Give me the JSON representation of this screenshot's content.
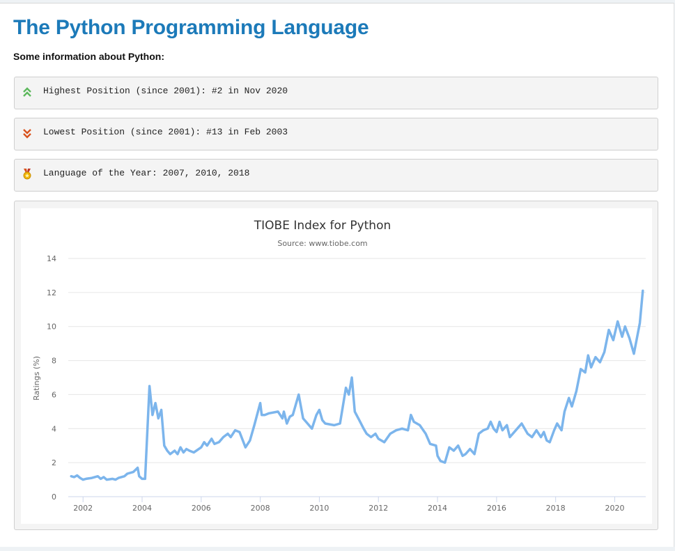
{
  "page": {
    "title": "The Python Programming Language",
    "subtitle": "Some information about Python:"
  },
  "info": [
    {
      "icon": "double-chevron-up-icon",
      "color": "#5cb85c",
      "text": "Highest Position (since 2001): #2 in Nov 2020"
    },
    {
      "icon": "double-chevron-down-icon",
      "color": "#d9531e",
      "text": "Lowest Position (since 2001): #13 in Feb 2003"
    },
    {
      "icon": "medal-icon",
      "color": "#e0a800",
      "text": "Language of the Year: 2007, 2010, 2018"
    }
  ],
  "chart_data": {
    "type": "line",
    "title": "TIOBE Index for Python",
    "subtitle": "Source: www.tiobe.com",
    "ylabel": "Ratings (%)",
    "xlabel": "",
    "ylim": [
      0,
      14
    ],
    "yticks": [
      0,
      2,
      4,
      6,
      8,
      10,
      12,
      14
    ],
    "xlim": [
      2001.5,
      2021.05
    ],
    "xticks": [
      2002,
      2004,
      2006,
      2008,
      2010,
      2012,
      2014,
      2016,
      2018,
      2020
    ],
    "grid": true,
    "line_color": "#7cb5ec",
    "series": [
      {
        "x": [
          2001.6,
          2001.7,
          2001.8,
          2001.9,
          2002.0,
          2002.1,
          2002.3,
          2002.5,
          2002.6,
          2002.7,
          2002.8,
          2003.0,
          2003.1,
          2003.2,
          2003.4,
          2003.5,
          2003.7,
          2003.85,
          2003.9,
          2004.0,
          2004.1,
          2004.25,
          2004.35,
          2004.45,
          2004.55,
          2004.65,
          2004.75,
          2004.85,
          2004.95,
          2005.1,
          2005.2,
          2005.3,
          2005.4,
          2005.5,
          2005.6,
          2005.75,
          2006.0,
          2006.1,
          2006.2,
          2006.35,
          2006.45,
          2006.6,
          2006.75,
          2006.9,
          2007.0,
          2007.15,
          2007.3,
          2007.5,
          2007.65,
          2007.8,
          2008.0,
          2008.05,
          2008.15,
          2008.3,
          2008.6,
          2008.75,
          2008.8,
          2008.9,
          2009.0,
          2009.1,
          2009.3,
          2009.45,
          2009.6,
          2009.75,
          2009.9,
          2010.0,
          2010.1,
          2010.2,
          2010.5,
          2010.7,
          2010.9,
          2011.0,
          2011.1,
          2011.2,
          2011.35,
          2011.5,
          2011.6,
          2011.75,
          2011.9,
          2012.0,
          2012.2,
          2012.4,
          2012.6,
          2012.8,
          2013.0,
          2013.1,
          2013.2,
          2013.4,
          2013.6,
          2013.75,
          2013.95,
          2014.0,
          2014.1,
          2014.25,
          2014.4,
          2014.55,
          2014.7,
          2014.85,
          2014.95,
          2015.1,
          2015.25,
          2015.4,
          2015.55,
          2015.7,
          2015.8,
          2015.9,
          2016.0,
          2016.1,
          2016.2,
          2016.35,
          2016.45,
          2016.6,
          2016.75,
          2016.85,
          2016.95,
          2017.05,
          2017.2,
          2017.35,
          2017.5,
          2017.6,
          2017.7,
          2017.8,
          2017.95,
          2018.05,
          2018.2,
          2018.3,
          2018.45,
          2018.55,
          2018.7,
          2018.85,
          2019.0,
          2019.1,
          2019.2,
          2019.35,
          2019.5,
          2019.65,
          2019.8,
          2019.95,
          2020.1,
          2020.25,
          2020.35,
          2020.5,
          2020.65,
          2020.85,
          2020.95
        ],
        "values": [
          1.2,
          1.15,
          1.25,
          1.1,
          1.0,
          1.05,
          1.1,
          1.2,
          1.05,
          1.15,
          1.0,
          1.05,
          1.0,
          1.1,
          1.2,
          1.35,
          1.45,
          1.7,
          1.2,
          1.05,
          1.05,
          6.5,
          4.8,
          5.5,
          4.6,
          5.1,
          3.0,
          2.7,
          2.5,
          2.7,
          2.5,
          2.9,
          2.6,
          2.8,
          2.7,
          2.6,
          2.9,
          3.2,
          3.0,
          3.4,
          3.1,
          3.2,
          3.5,
          3.7,
          3.5,
          3.9,
          3.8,
          2.9,
          3.3,
          4.2,
          5.5,
          4.8,
          4.8,
          4.9,
          5.0,
          4.6,
          5.0,
          4.3,
          4.7,
          4.8,
          6.0,
          4.6,
          4.3,
          4.0,
          4.8,
          5.1,
          4.5,
          4.3,
          4.2,
          4.3,
          6.4,
          6.0,
          7.0,
          5.0,
          4.5,
          4.0,
          3.7,
          3.5,
          3.7,
          3.4,
          3.2,
          3.7,
          3.9,
          4.0,
          3.9,
          4.8,
          4.4,
          4.2,
          3.7,
          3.1,
          3.0,
          2.4,
          2.1,
          2.0,
          2.9,
          2.7,
          3.0,
          2.4,
          2.5,
          2.8,
          2.5,
          3.7,
          3.9,
          4.0,
          4.4,
          4.0,
          3.8,
          4.4,
          3.9,
          4.2,
          3.5,
          3.8,
          4.1,
          4.3,
          4.0,
          3.7,
          3.5,
          3.9,
          3.5,
          3.8,
          3.3,
          3.2,
          3.9,
          4.3,
          3.9,
          5.0,
          5.8,
          5.3,
          6.2,
          7.5,
          7.3,
          8.3,
          7.6,
          8.2,
          7.9,
          8.5,
          9.8,
          9.2,
          10.3,
          9.4,
          10.0,
          9.3,
          8.4,
          10.2,
          12.1
        ]
      }
    ]
  }
}
